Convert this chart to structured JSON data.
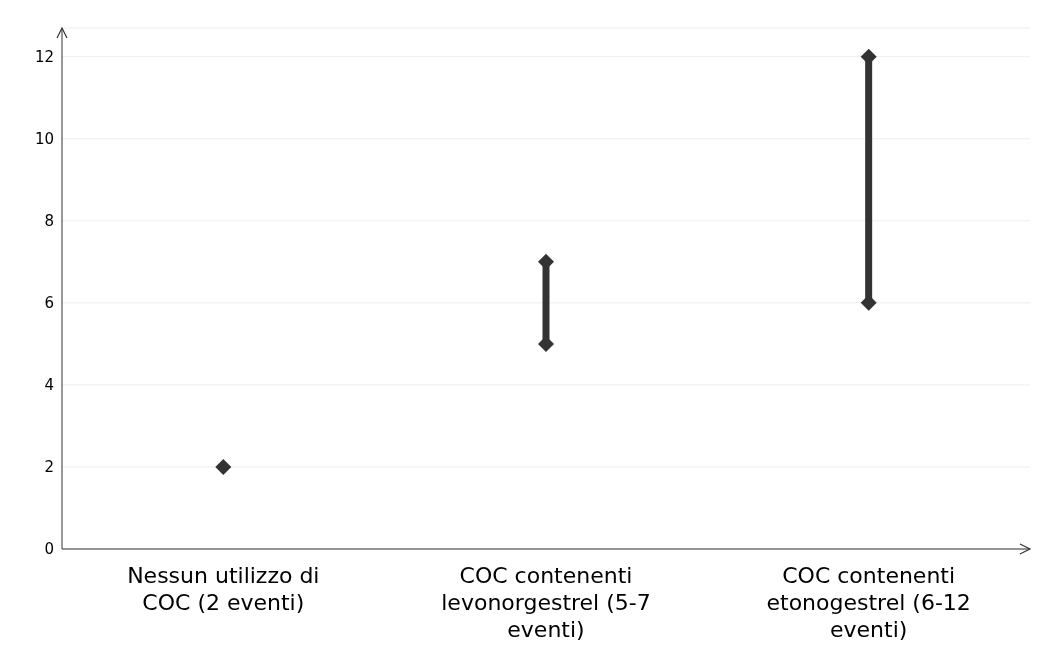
{
  "chart_data": {
    "type": "line",
    "categories": [
      "Nessun utilizzo di COC (2 eventi)",
      "COC contenenti levonorgestrel (5-7 eventi)",
      "COC contenenti etonogestrel (6-12 eventi)"
    ],
    "series": [
      {
        "color": "#333333",
        "x": [
          "Nessun utilizzo di COC (2 eventi)"
        ],
        "values": [
          2
        ]
      },
      {
        "color": "#333333",
        "x": [
          "COC contenenti levonorgestrel (5-7 eventi)",
          "COC contenenti levonorgestrel (5-7 eventi)"
        ],
        "values": [
          5,
          7
        ]
      },
      {
        "color": "#333333",
        "x": [
          "COC contenenti etonogestrel (6-12 eventi)",
          "COC contenenti etonogestrel (6-12 eventi)"
        ],
        "values": [
          6,
          12
        ]
      }
    ],
    "marker": "diamond",
    "ylim": [
      0,
      12.7
    ],
    "yticks": [
      0,
      2,
      4,
      6,
      8,
      10,
      12
    ],
    "grid": "y"
  }
}
